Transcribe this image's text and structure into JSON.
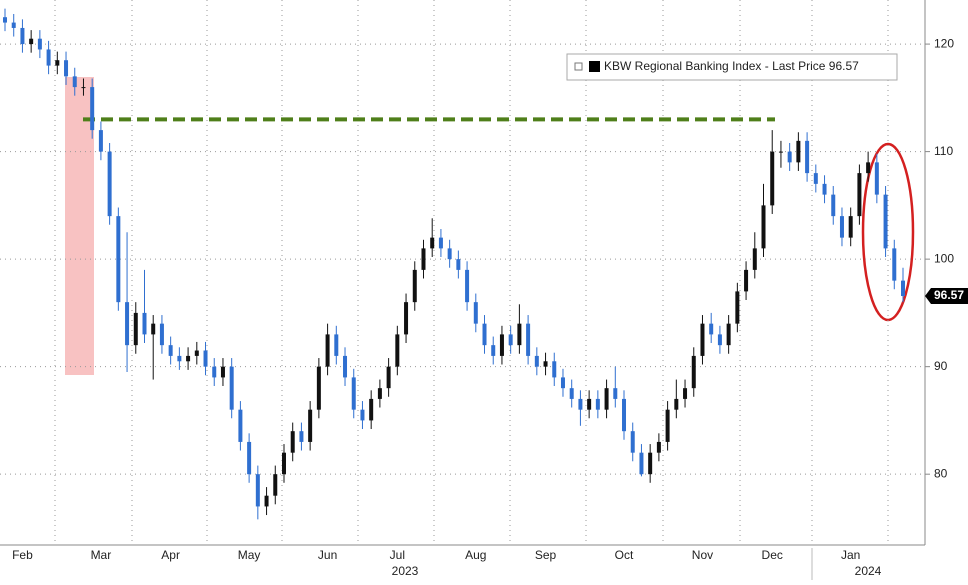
{
  "chart_data": {
    "type": "candlestick",
    "legend": "KBW Regional Banking Index - Last Price 96.57",
    "last_price": 96.57,
    "year_labels": [
      "2023",
      "2024"
    ],
    "up_color": "#111111",
    "down_color": "#2f6fd0",
    "reference_line": {
      "value": 113,
      "color": "#4f7f1a"
    },
    "ylim": [
      73.6,
      124.1
    ],
    "yticks": [
      80,
      90,
      100,
      110,
      120
    ],
    "grid": true,
    "categories": [
      null,
      null,
      "Feb",
      null,
      null,
      null,
      null,
      null,
      null,
      null,
      null,
      "Mar",
      null,
      null,
      null,
      null,
      null,
      null,
      null,
      "Apr",
      null,
      null,
      null,
      null,
      null,
      null,
      null,
      null,
      "May",
      null,
      null,
      null,
      null,
      null,
      null,
      null,
      null,
      "Jun",
      null,
      null,
      null,
      null,
      null,
      null,
      null,
      "Jul",
      null,
      null,
      null,
      null,
      null,
      null,
      null,
      null,
      "Aug",
      null,
      null,
      null,
      null,
      null,
      null,
      null,
      "Sep",
      null,
      null,
      null,
      null,
      null,
      null,
      null,
      null,
      "Oct",
      null,
      null,
      null,
      null,
      null,
      null,
      null,
      null,
      "Nov",
      null,
      null,
      null,
      null,
      null,
      null,
      null,
      "Dec",
      null,
      null,
      null,
      null,
      null,
      null,
      null,
      null,
      "Jan",
      null,
      null,
      null,
      null,
      null,
      null
    ],
    "open": [
      122.5,
      122,
      121.5,
      120,
      120.5,
      119.5,
      118,
      118.5,
      117,
      116,
      116,
      112,
      110,
      104,
      96,
      92,
      95,
      93,
      94,
      92,
      91,
      90.5,
      91,
      91.5,
      90,
      89,
      90,
      86,
      83,
      80,
      77,
      78,
      80,
      82,
      84,
      83,
      86,
      90,
      93,
      91,
      89,
      86,
      85,
      87,
      88,
      90,
      93,
      96,
      99,
      101,
      102,
      101,
      100,
      99,
      96,
      94,
      92,
      91,
      93,
      92,
      94,
      91,
      90,
      90.5,
      89,
      88,
      87,
      86,
      87,
      86,
      88,
      87,
      84,
      82,
      80,
      82,
      83,
      86,
      87,
      88,
      91,
      94,
      93,
      92,
      94,
      97,
      99,
      101,
      105,
      110,
      110,
      109,
      111,
      108,
      107,
      106,
      104,
      102,
      104,
      108,
      109,
      106,
      101,
      98
    ],
    "high": [
      123.3,
      122.8,
      122.3,
      121.3,
      121.3,
      120.3,
      119.3,
      119.3,
      117.8,
      116.8,
      116.8,
      112.8,
      110.8,
      104.8,
      102.5,
      96,
      99,
      94.8,
      94.8,
      92.8,
      91.8,
      91.8,
      92.3,
      92.3,
      90.8,
      90.8,
      90.8,
      86.8,
      83.8,
      80.8,
      78.8,
      80.8,
      82.8,
      84.8,
      84.8,
      86.8,
      90.8,
      94,
      93.8,
      91.8,
      89.8,
      86.8,
      87.8,
      88.8,
      90.8,
      93.8,
      96.8,
      99.8,
      101.8,
      103.8,
      102.8,
      101.8,
      100.8,
      99.8,
      96.8,
      94.8,
      92.8,
      93.8,
      93.8,
      95.8,
      94.8,
      91.8,
      91.3,
      91.3,
      89.8,
      88.8,
      87.8,
      87.8,
      87.8,
      88.8,
      90,
      87.8,
      84.8,
      82.8,
      82.8,
      83.8,
      86.8,
      88.8,
      88.8,
      91.8,
      94.8,
      95,
      93.8,
      94.8,
      97.8,
      99.8,
      102.5,
      107,
      112,
      111,
      110.8,
      111.8,
      111.8,
      108.8,
      107.8,
      106.8,
      104.8,
      104.8,
      108.8,
      110,
      109.8,
      106.8,
      101.8,
      99.2
    ],
    "low": [
      121.2,
      120.7,
      119.2,
      119.2,
      118.7,
      117.2,
      117.2,
      116.2,
      115.2,
      115.2,
      111.2,
      109.2,
      103.2,
      95.2,
      89.5,
      91.2,
      92.2,
      88.8,
      91.2,
      90.2,
      89.7,
      89.7,
      90.2,
      89.2,
      88.2,
      88.2,
      85.2,
      82.2,
      79.2,
      75.8,
      76.2,
      77.2,
      79.2,
      81.2,
      82.2,
      82.2,
      85.2,
      89.2,
      90.2,
      88.2,
      85.2,
      84.2,
      84.2,
      86.2,
      87.2,
      89.2,
      92.2,
      95.2,
      98.2,
      100.2,
      100.2,
      99.2,
      98.2,
      95.2,
      93.2,
      91.2,
      90.2,
      90.2,
      91.2,
      91.2,
      90.2,
      89.2,
      89.2,
      88.2,
      87.2,
      86.2,
      84.5,
      85.2,
      85.2,
      85.2,
      86.2,
      83.2,
      81.2,
      79.8,
      79.2,
      81.2,
      82.2,
      85.2,
      86.2,
      87.2,
      90.2,
      92.2,
      91.2,
      91.2,
      93.2,
      96.2,
      98.2,
      100.2,
      104.2,
      108.5,
      108.2,
      108.2,
      107.2,
      106.2,
      105.2,
      103.2,
      101.2,
      101.2,
      103.2,
      107.2,
      105.2,
      100.2,
      97.2,
      96
    ],
    "close": [
      122,
      121.5,
      120,
      120.5,
      119.5,
      118,
      118.5,
      117,
      116,
      116,
      112,
      110,
      104,
      96,
      92,
      95,
      93,
      94,
      92,
      91,
      90.5,
      91,
      91.5,
      90,
      89,
      90,
      86,
      83,
      80,
      77,
      78,
      80,
      82,
      84,
      83,
      86,
      90,
      93,
      91,
      89,
      86,
      85,
      87,
      88,
      90,
      93,
      96,
      99,
      101,
      102,
      101,
      100,
      99,
      96,
      94,
      92,
      91,
      93,
      92,
      94,
      91,
      90,
      90.5,
      89,
      88,
      87,
      86,
      87,
      86,
      88,
      87,
      84,
      82,
      80,
      82,
      83,
      86,
      87,
      88,
      91,
      94,
      93,
      92,
      94,
      97,
      99,
      101,
      105,
      110,
      110,
      109,
      111,
      108,
      107,
      106,
      104,
      102,
      104,
      108,
      109,
      106,
      101,
      98,
      96.57
    ]
  }
}
